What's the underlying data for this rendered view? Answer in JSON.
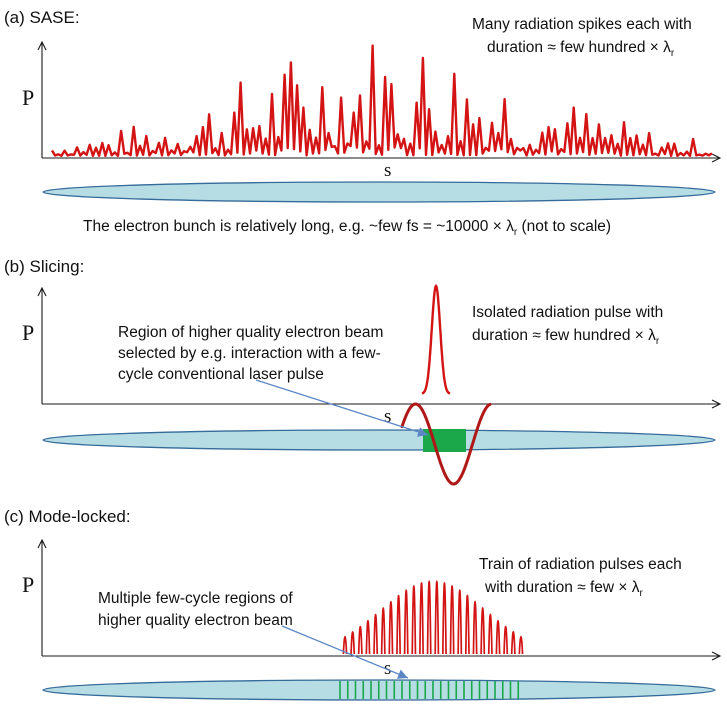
{
  "colors": {
    "axis": "#1a1a1a",
    "radiation": "#d41414",
    "bunch_fill": "#b6dde3",
    "bunch_stroke": "#356a9a",
    "slice_green": "#1aa84a",
    "pointer": "#5b87c5",
    "text": "#111111"
  },
  "panels": {
    "a": {
      "heading": "(a) SASE:",
      "ylabel": "P",
      "xlabel": "s",
      "note_line1": "Many radiation spikes each with",
      "note_line2_main": "duration ≈ few hundred × λ",
      "note_line2_sub": "r",
      "caption_main": "The electron bunch is relatively long, e.g. ~few fs = ~10000 × λ",
      "caption_sub": "r",
      "caption_tail": " (not to scale)"
    },
    "b": {
      "heading": "(b) Slicing:",
      "ylabel": "P",
      "xlabel": "s",
      "note_line1": "Isolated radiation pulse with",
      "note_line2_main": "duration ≈ few hundred × λ",
      "note_line2_sub": "r",
      "region_line1": "Region of higher quality electron beam",
      "region_line2": "selected by e.g. interaction with a few-",
      "region_line3": "cycle conventional laser pulse"
    },
    "c": {
      "heading": "(c) Mode-locked:",
      "ylabel": "P",
      "xlabel": "s",
      "note_line1": "Train of radiation pulses each",
      "note_line2_main": "with duration ≈ few × λ",
      "note_line2_sub": "r",
      "region_line1": "Multiple few-cycle regions of",
      "region_line2": "higher quality electron beam"
    }
  }
}
